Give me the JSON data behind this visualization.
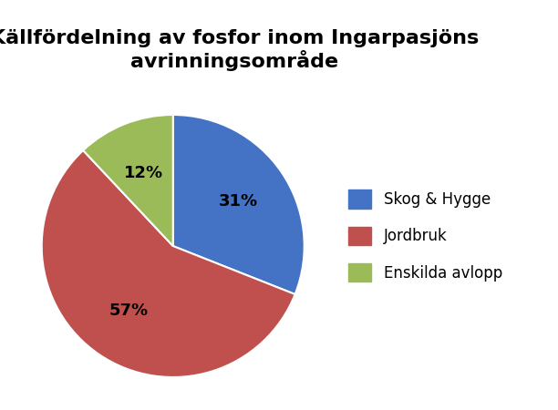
{
  "title": "Källfördelning av fosfor inom Ingarpasjöns\navrinningsområde",
  "slices": [
    31,
    57,
    12
  ],
  "labels": [
    "Skog & Hygge",
    "Jordbruk",
    "Enskilda avlopp"
  ],
  "pct_labels": [
    "31%",
    "57%",
    "12%"
  ],
  "colors": [
    "#4472C4",
    "#C0504D",
    "#9BBB59"
  ],
  "startangle": 90,
  "background_color": "#ffffff",
  "title_fontsize": 16,
  "legend_fontsize": 12,
  "pct_fontsize": 13
}
